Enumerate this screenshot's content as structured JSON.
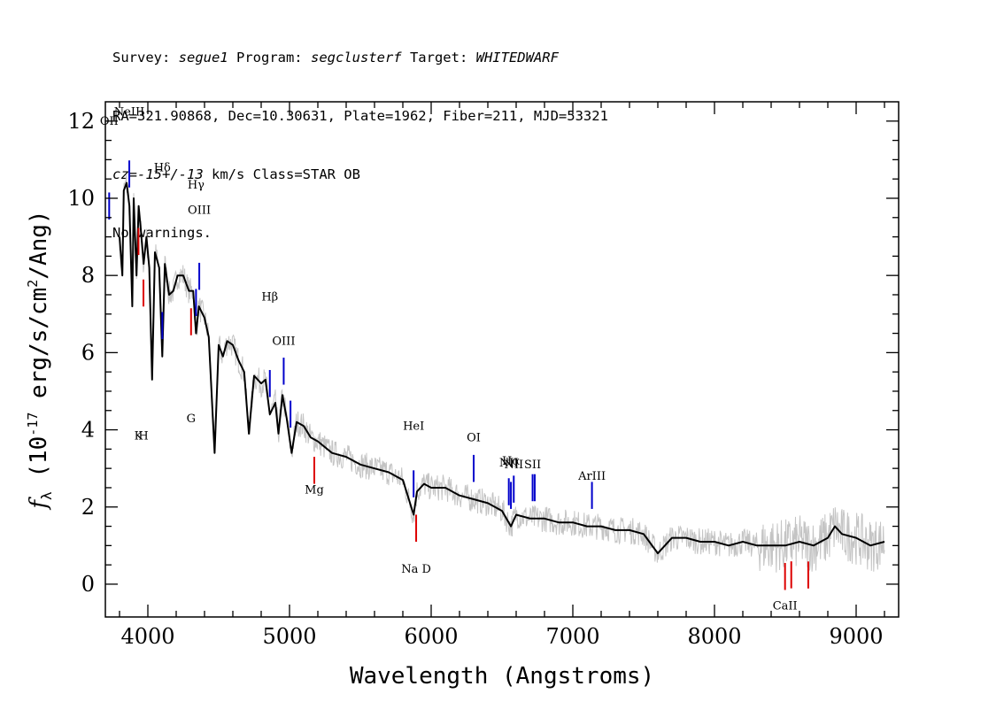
{
  "header": {
    "line1": {
      "p1": "Survey: ",
      "survey": "segue1",
      "p2": " Program: ",
      "program": "segclusterf",
      "p3": " Target: ",
      "target": "WHITEDWARF"
    },
    "line2": "RA=321.90868, Dec=10.30631, Plate=1962, Fiber=211, MJD=53321",
    "line3": {
      "cz": "cz",
      "eq": "=",
      "val": "-15+/-13",
      "rest": " km/s Class=STAR OB"
    },
    "line4": "No warnings."
  },
  "chart_data": {
    "type": "line",
    "xlabel": "Wavelength (Angstroms)",
    "ylabel": "f_λ (10^-17 erg/s/cm²/Ang)",
    "xlim": [
      3700,
      9300
    ],
    "ylim": [
      -0.85,
      12.5
    ],
    "xticks": [
      4000,
      5000,
      6000,
      7000,
      8000,
      9000
    ],
    "yticks": [
      0,
      2,
      4,
      6,
      8,
      10,
      12
    ],
    "series": [
      {
        "color": "#000000",
        "x": [
          3800,
          3820,
          3830,
          3850,
          3870,
          3890,
          3900,
          3920,
          3935,
          3950,
          3970,
          3990,
          4010,
          4030,
          4050,
          4080,
          4102,
          4120,
          4150,
          4180,
          4210,
          4250,
          4290,
          4320,
          4340,
          4360,
          4400,
          4430,
          4471,
          4500,
          4530,
          4560,
          4600,
          4640,
          4680,
          4713,
          4750,
          4800,
          4830,
          4861,
          4900,
          4922,
          4950,
          4980,
          5015,
          5050,
          5100,
          5150,
          5200,
          5300,
          5400,
          5500,
          5600,
          5700,
          5800,
          5876,
          5900,
          5950,
          6000,
          6100,
          6200,
          6300,
          6400,
          6500,
          6563,
          6600,
          6700,
          6800,
          6900,
          7000,
          7100,
          7200,
          7300,
          7400,
          7500,
          7600,
          7700,
          7800,
          7900,
          8000,
          8100,
          8200,
          8300,
          8400,
          8500,
          8600,
          8700,
          8800,
          8850,
          8900,
          9000,
          9100,
          9200
        ],
        "y": [
          9.0,
          8.0,
          10.2,
          10.4,
          9.8,
          7.2,
          10.0,
          8.0,
          9.8,
          9.2,
          8.3,
          9.0,
          8.2,
          5.3,
          8.6,
          8.2,
          5.9,
          8.3,
          7.5,
          7.6,
          8.0,
          8.0,
          7.6,
          7.6,
          6.5,
          7.2,
          6.9,
          6.4,
          3.4,
          6.2,
          5.9,
          6.3,
          6.2,
          5.8,
          5.5,
          3.9,
          5.4,
          5.2,
          5.3,
          4.4,
          4.7,
          3.9,
          4.9,
          4.3,
          3.4,
          4.2,
          4.1,
          3.8,
          3.7,
          3.4,
          3.3,
          3.1,
          3.0,
          2.9,
          2.7,
          1.8,
          2.4,
          2.6,
          2.5,
          2.5,
          2.3,
          2.2,
          2.1,
          1.9,
          1.5,
          1.8,
          1.7,
          1.7,
          1.6,
          1.6,
          1.5,
          1.5,
          1.4,
          1.4,
          1.3,
          0.8,
          1.2,
          1.2,
          1.1,
          1.1,
          1.0,
          1.1,
          1.0,
          1.0,
          1.0,
          1.1,
          1.0,
          1.2,
          1.5,
          1.3,
          1.2,
          1.0,
          1.1
        ]
      }
    ],
    "lines_blue": [
      {
        "label": "OII",
        "x": 3727,
        "label_y": 11.9
      },
      {
        "label": "NeIII",
        "x": 3869,
        "label_y": 12.15
      },
      {
        "label": "Hδ",
        "x": 4102,
        "label_y": 10.7
      },
      {
        "label": "Hγ",
        "x": 4340,
        "label_y": 10.25
      },
      {
        "label": "OIII",
        "x": 4363,
        "label_y": 9.6
      },
      {
        "label": "Hβ",
        "x": 4861,
        "label_y": 7.35
      },
      {
        "label": "OIII",
        "x": 4959,
        "label_y": 6.2
      },
      {
        "label": "",
        "x": 5007,
        "label_y": 0
      },
      {
        "label": "HeI",
        "x": 5876,
        "label_y": 4.0
      },
      {
        "label": "OI",
        "x": 6300,
        "label_y": 3.7
      },
      {
        "label": "NII",
        "x": 6548,
        "label_y": 3.05
      },
      {
        "label": "Hα",
        "x": 6563,
        "label_y": 3.1
      },
      {
        "label": "NII",
        "x": 6583,
        "label_y": 3.0
      },
      {
        "label": "SII",
        "x": 6716,
        "label_y": 3.0
      },
      {
        "label": "",
        "x": 6731,
        "label_y": 0
      },
      {
        "label": "ArIII",
        "x": 7135,
        "label_y": 2.7
      }
    ],
    "lines_red": [
      {
        "label": "K",
        "x": 3934,
        "label_y": 3.75
      },
      {
        "label": "H",
        "x": 3969,
        "label_y": 3.75
      },
      {
        "label": "G",
        "x": 4305,
        "label_y": 4.2
      },
      {
        "label": "Mg",
        "x": 5175,
        "label_y": 2.35
      },
      {
        "label": "Na D",
        "x": 5894,
        "label_y": 0.3
      },
      {
        "label": "CaII",
        "x": 8498,
        "label_y": -0.65
      },
      {
        "label": "",
        "x": 8542,
        "label_y": 0
      },
      {
        "label": "",
        "x": 8662,
        "label_y": 0
      }
    ]
  }
}
